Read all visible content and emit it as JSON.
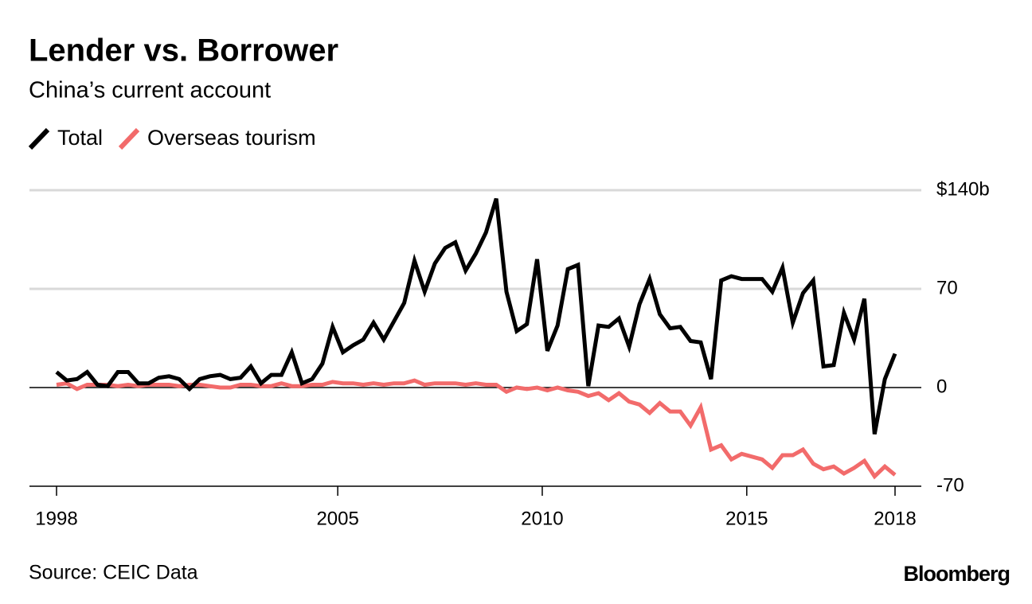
{
  "chart_data": {
    "type": "line",
    "title": "Lender vs. Borrower",
    "subtitle": "China’s current account",
    "source": "Source: CEIC Data",
    "brand": "Bloomberg",
    "x": [
      1998.125,
      1998.375,
      1998.625,
      1998.875,
      1999.125,
      1999.375,
      1999.625,
      1999.875,
      2000.125,
      2000.375,
      2000.625,
      2000.875,
      2001.125,
      2001.375,
      2001.625,
      2001.875,
      2002.125,
      2002.375,
      2002.625,
      2002.875,
      2003.125,
      2003.375,
      2003.625,
      2003.875,
      2004.125,
      2004.375,
      2004.625,
      2004.875,
      2005.125,
      2005.375,
      2005.625,
      2005.875,
      2006.125,
      2006.375,
      2006.625,
      2006.875,
      2007.125,
      2007.375,
      2007.625,
      2007.875,
      2008.125,
      2008.375,
      2008.625,
      2008.875,
      2009.125,
      2009.375,
      2009.625,
      2009.875,
      2010.125,
      2010.375,
      2010.625,
      2010.875,
      2011.125,
      2011.375,
      2011.625,
      2011.875,
      2012.125,
      2012.375,
      2012.625,
      2012.875,
      2013.125,
      2013.375,
      2013.625,
      2013.875,
      2014.125,
      2014.375,
      2014.625,
      2014.875,
      2015.125,
      2015.375,
      2015.625,
      2015.875,
      2016.125,
      2016.375,
      2016.625,
      2016.875,
      2017.125,
      2017.375,
      2017.625,
      2017.875,
      2018.125,
      2018.375,
      2018.625
    ],
    "series": [
      {
        "name": "Total",
        "color": "#000000",
        "values": [
          11,
          5,
          6,
          11,
          2,
          1,
          11,
          11,
          3,
          3,
          7,
          8,
          6,
          -1,
          6,
          8,
          9,
          6,
          7,
          15,
          3,
          9,
          9,
          25,
          3,
          6,
          17,
          43,
          25,
          30,
          34,
          46,
          34,
          47,
          60,
          90,
          68,
          88,
          99,
          103,
          83,
          95,
          110,
          134,
          68,
          40,
          45,
          91,
          26,
          44,
          84,
          87,
          1,
          44,
          43,
          49,
          29,
          59,
          77,
          52,
          42,
          43,
          33,
          32,
          6,
          76,
          79,
          77,
          77,
          77,
          68,
          85,
          46,
          67,
          76,
          15,
          16,
          53,
          34,
          63,
          -33,
          6,
          24
        ]
      },
      {
        "name": "Overseas tourism",
        "color": "#f26b6b",
        "values": [
          2,
          3,
          -1,
          2,
          2,
          2,
          1,
          2,
          1,
          2,
          2,
          2,
          1,
          2,
          2,
          1,
          0,
          0,
          2,
          2,
          1,
          1,
          3,
          1,
          1,
          2,
          2,
          4,
          3,
          3,
          2,
          3,
          2,
          3,
          3,
          5,
          2,
          3,
          3,
          3,
          2,
          3,
          2,
          2,
          -3,
          0,
          -1,
          0,
          -2,
          0,
          -2,
          -3,
          -6,
          -4,
          -9,
          -4,
          -10,
          -12,
          -18,
          -11,
          -17,
          -17,
          -27,
          -14,
          -44,
          -41,
          -51,
          -47,
          -49,
          -51,
          -57,
          -48,
          -48,
          -44,
          -54,
          -58,
          -56,
          -61,
          -57,
          -52,
          -63,
          -56,
          -62
        ]
      }
    ],
    "xlim": [
      1998.125,
      2018.625
    ],
    "xticks": [
      {
        "value": 1998.125,
        "label": "1998"
      },
      2005,
      2010,
      2015,
      {
        "value": 2018.625,
        "label": "2018"
      }
    ],
    "ylim": [
      -70,
      140
    ],
    "yticks": [
      {
        "value": 140,
        "label": "$140b"
      },
      70,
      0,
      -70
    ],
    "grid": true
  }
}
